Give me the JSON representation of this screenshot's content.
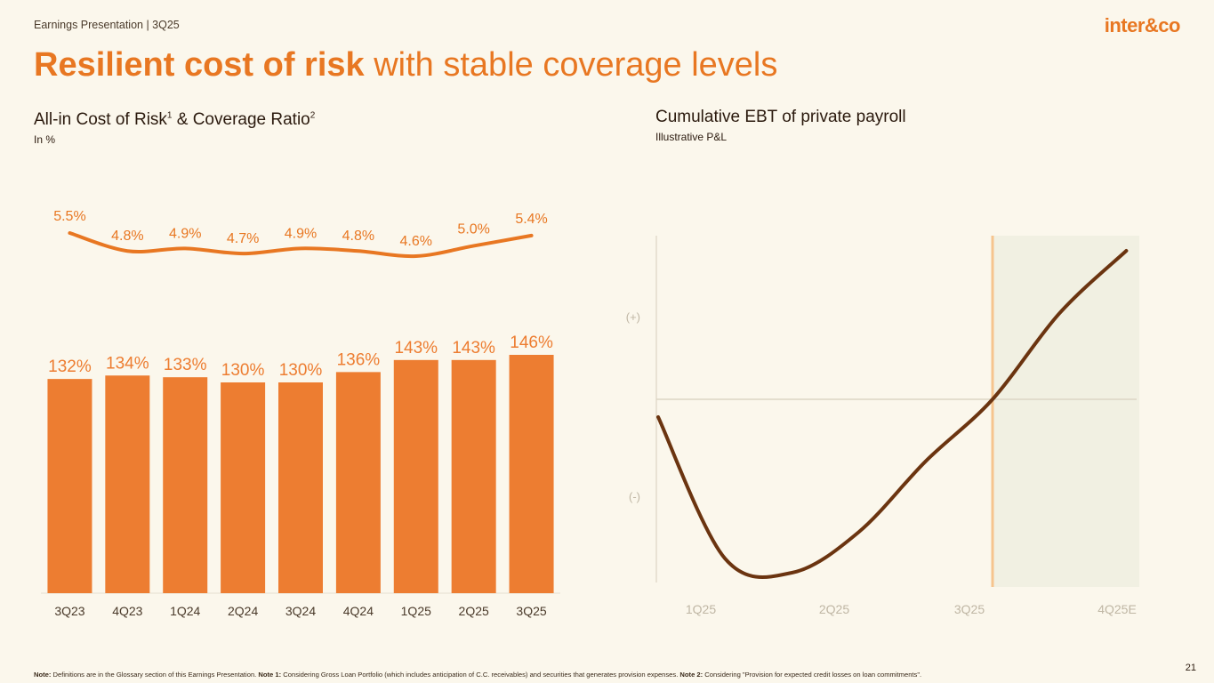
{
  "header": {
    "label": "Earnings Presentation | 3Q25",
    "brand": "inter&co"
  },
  "title": {
    "strong": "Resilient cost of risk",
    "rest": " with stable coverage levels"
  },
  "left_chart": {
    "title": "All-in Cost of Risk",
    "sup1": "1",
    "title_mid": " & Coverage Ratio",
    "sup2": "2",
    "subtitle": "In %"
  },
  "right_chart": {
    "title": "Cumulative EBT of private payroll",
    "subtitle": "Illustrative P&L"
  },
  "chart_data": [
    {
      "type": "bar",
      "title": "All-in Cost of Risk & Coverage Ratio",
      "unit": "In %",
      "categories": [
        "3Q23",
        "4Q23",
        "1Q24",
        "2Q24",
        "3Q24",
        "4Q24",
        "1Q25",
        "2Q25",
        "3Q25"
      ],
      "series": [
        {
          "name": "Coverage Ratio",
          "kind": "bar",
          "values": [
            132,
            134,
            133,
            130,
            130,
            136,
            143,
            143,
            146
          ],
          "labels": [
            "132%",
            "134%",
            "133%",
            "130%",
            "130%",
            "136%",
            "143%",
            "143%",
            "146%"
          ],
          "color": "#ED7D31"
        },
        {
          "name": "All-in Cost of Risk",
          "kind": "line",
          "values": [
            5.5,
            4.8,
            4.9,
            4.7,
            4.9,
            4.8,
            4.6,
            5.0,
            5.4
          ],
          "labels": [
            "5.5%",
            "4.8%",
            "4.9%",
            "4.7%",
            "4.9%",
            "4.8%",
            "4.6%",
            "5.0%",
            "5.4%"
          ],
          "color": "#E87722"
        }
      ]
    },
    {
      "type": "line",
      "title": "Cumulative EBT of private payroll",
      "subtitle": "Illustrative P&L",
      "x_labels": [
        "1Q25",
        "2Q25",
        "3Q25",
        "4Q25E"
      ],
      "y_labels": [
        "(+)",
        "(-)"
      ],
      "x": [
        0,
        0.5,
        1,
        1.5,
        2,
        2.5,
        3,
        3.5
      ],
      "y": [
        -0.1,
        -0.9,
        -0.98,
        -0.75,
        -0.35,
        0,
        0.55,
        0.95
      ],
      "projection_start": "3Q25",
      "colors": {
        "line": "#6B3410",
        "projection": "#F1F0E2",
        "marker": "#F6C48E"
      }
    }
  ],
  "footnote": {
    "note_label": "Note:",
    "note_text": " Definitions are in the Glossary section of this Earnings Presentation. ",
    "note1_label": "Note 1:",
    "note1_text": " Considering Gross Loan Portfolio (which includes anticipation of C.C. receivables) and securities that generates provision expenses. ",
    "note2_label": "Note 2:",
    "note2_text": " Considering \"Provision for expected credit losses on loan commitments\"."
  },
  "page_number": "21"
}
